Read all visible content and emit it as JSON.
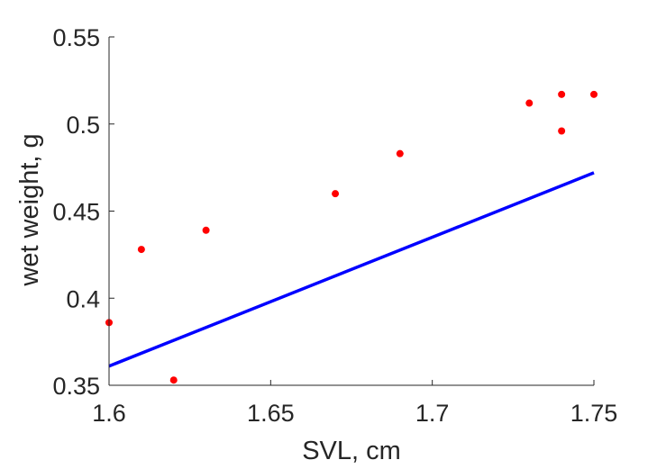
{
  "chart_data": {
    "type": "scatter",
    "title": "",
    "xlabel": "SVL, cm",
    "ylabel": "wet weight, g",
    "xlim": [
      1.6,
      1.75
    ],
    "ylim": [
      0.35,
      0.55
    ],
    "xticks": [
      "1.6",
      "1.65",
      "1.7",
      "1.75"
    ],
    "yticks": [
      "0.35",
      "0.4",
      "0.45",
      "0.5",
      "0.55"
    ],
    "grid": false,
    "series": [
      {
        "type": "scatter",
        "color": "#ff0000",
        "points": [
          {
            "x": 1.6,
            "y": 0.386
          },
          {
            "x": 1.61,
            "y": 0.428
          },
          {
            "x": 1.62,
            "y": 0.353
          },
          {
            "x": 1.63,
            "y": 0.439
          },
          {
            "x": 1.67,
            "y": 0.46
          },
          {
            "x": 1.69,
            "y": 0.483
          },
          {
            "x": 1.73,
            "y": 0.512
          },
          {
            "x": 1.74,
            "y": 0.517
          },
          {
            "x": 1.74,
            "y": 0.496
          },
          {
            "x": 1.75,
            "y": 0.517
          }
        ]
      },
      {
        "type": "line",
        "color": "#0000ff",
        "points": [
          {
            "x": 1.6,
            "y": 0.361
          },
          {
            "x": 1.75,
            "y": 0.472
          }
        ]
      }
    ]
  }
}
